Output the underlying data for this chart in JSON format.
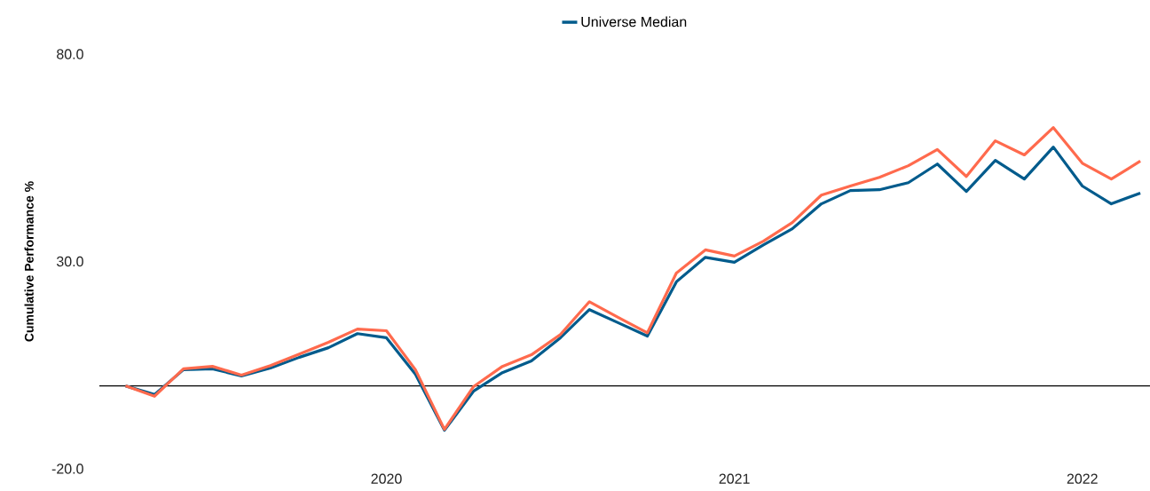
{
  "chart_data": {
    "type": "line",
    "ylabel": "Cumulative Performance %",
    "x": [
      "2019-04",
      "2019-05",
      "2019-06",
      "2019-07",
      "2019-08",
      "2019-09",
      "2019-10",
      "2019-11",
      "2019-12",
      "2020-01",
      "2020-02",
      "2020-03",
      "2020-04",
      "2020-05",
      "2020-06",
      "2020-07",
      "2020-08",
      "2020-09",
      "2020-10",
      "2020-11",
      "2020-12",
      "2021-01",
      "2021-02",
      "2021-03",
      "2021-04",
      "2021-05",
      "2021-06",
      "2021-07",
      "2021-08",
      "2021-09",
      "2021-10",
      "2021-11",
      "2021-12",
      "2022-01",
      "2022-02",
      "2022-03"
    ],
    "series": [
      {
        "name": "Universe Median",
        "color": "#005b8c",
        "values": [
          0,
          -2.1,
          3.9,
          4.1,
          2.4,
          4.3,
          6.9,
          9.2,
          12.6,
          11.6,
          2.8,
          -10.7,
          -1.3,
          3.2,
          6.0,
          11.6,
          18.4,
          15.2,
          12.0,
          25.1,
          31.0,
          29.8,
          34.0,
          37.9,
          43.9,
          47.1,
          47.3,
          49.0,
          53.5,
          46.9,
          54.4,
          49.9,
          57.6,
          48.2,
          43.9,
          46.5
        ]
      },
      {
        "color": "#ff6a4d",
        "values": [
          0,
          -2.5,
          4.1,
          4.7,
          2.6,
          4.9,
          7.7,
          10.5,
          13.7,
          13.3,
          3.9,
          -10.5,
          -0.2,
          4.7,
          7.5,
          12.4,
          20.3,
          16.5,
          12.8,
          27.2,
          32.8,
          31.3,
          34.9,
          39.4,
          46.0,
          48.2,
          50.3,
          53.1,
          57.0,
          50.5,
          59.1,
          55.7,
          62.3,
          53.7,
          49.9,
          54.2
        ]
      }
    ],
    "xlim": [
      "2019-03-04",
      "2022-03-11"
    ],
    "xticks": [
      {
        "value": "2020-01",
        "label": "2020"
      },
      {
        "value": "2021-01",
        "label": "2021"
      },
      {
        "value": "2022-01",
        "label": "2022"
      }
    ],
    "ylim": [
      -20,
      80
    ],
    "yticks": [
      {
        "value": 80,
        "label": "80.0"
      },
      {
        "value": 30,
        "label": "30.0"
      },
      {
        "value": -20,
        "label": "-20.0"
      }
    ],
    "ref_lines": [
      {
        "axis": "y",
        "value": 0,
        "color": "#000000"
      }
    ],
    "legend": "top",
    "grid": false,
    "marker": "none",
    "line_style": "solid"
  }
}
